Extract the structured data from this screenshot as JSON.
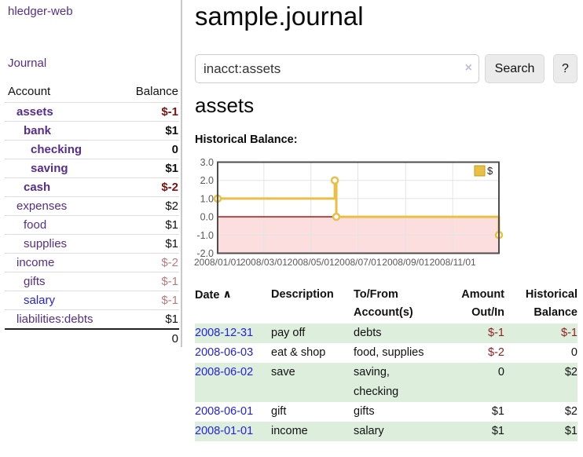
{
  "sidebar": {
    "app_title": "hledger-web",
    "journal_link": "Journal",
    "accounts_header": {
      "account": "Account",
      "balance": "Balance"
    },
    "accounts": [
      {
        "name": "assets",
        "level": 1,
        "bold": true,
        "link_color": "purple",
        "balance": "$-1",
        "balance_style": "neg-strong"
      },
      {
        "name": "bank",
        "level": 2,
        "bold": true,
        "link_color": "purple",
        "balance": "$1",
        "balance_style": "pos"
      },
      {
        "name": "checking",
        "level": 3,
        "bold": true,
        "link_color": "purple",
        "balance": "0",
        "balance_style": "pos"
      },
      {
        "name": "saving",
        "level": 3,
        "bold": true,
        "link_color": "purple",
        "balance": "$1",
        "balance_style": "pos"
      },
      {
        "name": "cash",
        "level": 2,
        "bold": true,
        "link_color": "purple",
        "balance": "$-2",
        "balance_style": "neg-strong"
      },
      {
        "name": "expenses",
        "level": 1,
        "bold": false,
        "link_color": "purple",
        "balance": "$2",
        "balance_style": "pos"
      },
      {
        "name": "food",
        "level": 2,
        "bold": false,
        "link_color": "purple",
        "balance": "$1",
        "balance_style": "pos"
      },
      {
        "name": "supplies",
        "level": 2,
        "bold": false,
        "link_color": "purple",
        "balance": "$1",
        "balance_style": "pos"
      },
      {
        "name": "income",
        "level": 1,
        "bold": false,
        "link_color": "purple",
        "balance": "$-2",
        "balance_style": "neg-soft"
      },
      {
        "name": "gifts",
        "level": 2,
        "bold": false,
        "link_color": "purple",
        "balance": "$-1",
        "balance_style": "neg-soft"
      },
      {
        "name": "salary",
        "level": 2,
        "bold": false,
        "link_color": "blue",
        "balance": "$-1",
        "balance_style": "neg-soft"
      },
      {
        "name": "liabilities:debts",
        "level": 1,
        "bold": false,
        "link_color": "purple",
        "balance": "$1",
        "balance_style": "pos"
      }
    ],
    "total": "0"
  },
  "main": {
    "title": "sample.journal",
    "search": {
      "value": "inacct:assets",
      "clear_icon": "×",
      "button_label": "Search",
      "help_label": "?"
    },
    "account_heading": "assets",
    "chart_label": "Historical Balance:"
  },
  "chart_data": {
    "type": "line",
    "title": "Historical Balance:",
    "legend_position": "top-right",
    "grid": true,
    "ylim": [
      -2,
      3
    ],
    "y_ticks": [
      "3.0",
      "2.0",
      "1.0",
      "0.0",
      "-1.0",
      "-2.0"
    ],
    "x_range_days": [
      0,
      365
    ],
    "x_ticks": [
      {
        "day": 0,
        "label": "2008/01/01"
      },
      {
        "day": 60,
        "label": "2008/03/01"
      },
      {
        "day": 121,
        "label": "2008/05/01"
      },
      {
        "day": 182,
        "label": "2008/07/01"
      },
      {
        "day": 244,
        "label": "2008/09/01"
      },
      {
        "day": 305,
        "label": "2008/11/01"
      }
    ],
    "series": [
      {
        "name": "$",
        "color": "#e9bf45",
        "steps": true,
        "x": [
          "2008-01-01",
          "2008-06-01",
          "2008-06-03",
          "2008-12-31"
        ],
        "x_day": [
          0,
          152,
          154,
          365
        ],
        "values": [
          1,
          2,
          0,
          -1
        ]
      }
    ],
    "colors": {
      "negative_region_fill": "#fcdede",
      "zero_line": "#a00000",
      "border": "#4d4d4d",
      "gridline": "#e4e4e4",
      "tick_label": "#5a5a5a",
      "marker_fill": "#ffffff",
      "legend_box_border": "#c49a22"
    }
  },
  "register": {
    "headers": {
      "date": "Date",
      "sort_icon": "∧",
      "description": "Description",
      "accounts": "To/From Account(s)",
      "amount": "Amount Out/In",
      "balance": "Historical Balance"
    },
    "rows": [
      {
        "date": "2008-12-31",
        "description": "pay off",
        "accounts": "debts",
        "amount": "$-1",
        "amount_neg": true,
        "balance": "$-1",
        "balance_neg": true
      },
      {
        "date": "2008-06-03",
        "description": "eat & shop",
        "accounts": "food, supplies",
        "amount": "$-2",
        "amount_neg": true,
        "balance": "0",
        "balance_neg": false
      },
      {
        "date": "2008-06-02",
        "description": "save",
        "accounts": "saving, checking",
        "amount": "0",
        "amount_neg": false,
        "balance": "$2",
        "balance_neg": false
      },
      {
        "date": "2008-06-01",
        "description": "gift",
        "accounts": "gifts",
        "amount": "$1",
        "amount_neg": false,
        "balance": "$2",
        "balance_neg": false
      },
      {
        "date": "2008-01-01",
        "description": "income",
        "accounts": "salary",
        "amount": "$1",
        "amount_neg": false,
        "balance": "$1",
        "balance_neg": false
      }
    ]
  }
}
